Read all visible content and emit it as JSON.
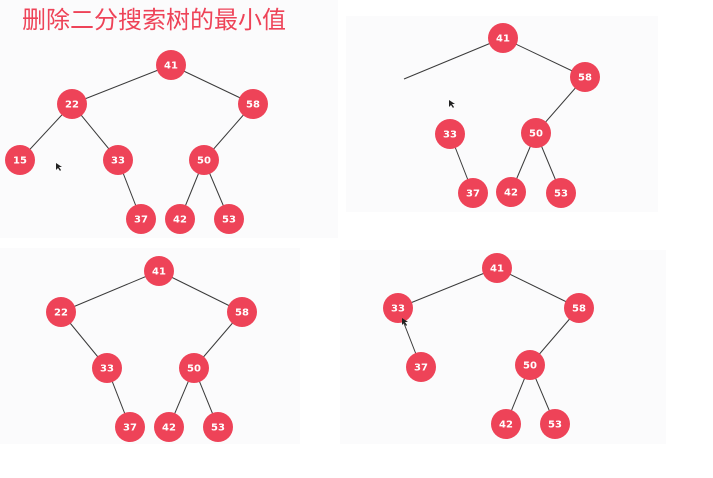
{
  "title": "删除二分搜索树的最小值",
  "colors": {
    "node_fill": "#ee4358",
    "node_text": "#ffffff",
    "edge": "#3a3a3a",
    "title": "#ee4358",
    "panel_bg": "#fbfbfc"
  },
  "icons": [
    "mouse-cursor-icon"
  ],
  "panels": [
    {
      "name": "tree-panel-1",
      "nodes": [
        {
          "id": "n41",
          "label": "41"
        },
        {
          "id": "n22",
          "label": "22"
        },
        {
          "id": "n58",
          "label": "58"
        },
        {
          "id": "n15",
          "label": "15"
        },
        {
          "id": "n33",
          "label": "33"
        },
        {
          "id": "n50",
          "label": "50"
        },
        {
          "id": "n37",
          "label": "37"
        },
        {
          "id": "n42",
          "label": "42"
        },
        {
          "id": "n53",
          "label": "53"
        }
      ],
      "edges": [
        [
          "n41",
          "n22"
        ],
        [
          "n41",
          "n58"
        ],
        [
          "n22",
          "n15"
        ],
        [
          "n22",
          "n33"
        ],
        [
          "n58",
          "n50"
        ],
        [
          "n33",
          "n37"
        ],
        [
          "n50",
          "n42"
        ],
        [
          "n50",
          "n53"
        ]
      ]
    },
    {
      "name": "tree-panel-2",
      "nodes": [
        {
          "id": "n41",
          "label": "41"
        },
        {
          "id": "n58",
          "label": "58"
        },
        {
          "id": "n33",
          "label": "33"
        },
        {
          "id": "n50",
          "label": "50"
        },
        {
          "id": "n37",
          "label": "37"
        },
        {
          "id": "n42",
          "label": "42"
        },
        {
          "id": "n53",
          "label": "53"
        }
      ],
      "edges": [
        [
          "n41",
          "dangling"
        ],
        [
          "n41",
          "n58"
        ],
        [
          "n58",
          "n50"
        ],
        [
          "n33",
          "n37"
        ],
        [
          "n50",
          "n42"
        ],
        [
          "n50",
          "n53"
        ]
      ]
    },
    {
      "name": "tree-panel-3",
      "nodes": [
        {
          "id": "n41",
          "label": "41"
        },
        {
          "id": "n22",
          "label": "22"
        },
        {
          "id": "n58",
          "label": "58"
        },
        {
          "id": "n33",
          "label": "33"
        },
        {
          "id": "n50",
          "label": "50"
        },
        {
          "id": "n37",
          "label": "37"
        },
        {
          "id": "n42",
          "label": "42"
        },
        {
          "id": "n53",
          "label": "53"
        }
      ],
      "edges": [
        [
          "n41",
          "n22"
        ],
        [
          "n41",
          "n58"
        ],
        [
          "n22",
          "n33"
        ],
        [
          "n58",
          "n50"
        ],
        [
          "n33",
          "n37"
        ],
        [
          "n50",
          "n42"
        ],
        [
          "n50",
          "n53"
        ]
      ]
    },
    {
      "name": "tree-panel-4",
      "nodes": [
        {
          "id": "n41",
          "label": "41"
        },
        {
          "id": "n33",
          "label": "33"
        },
        {
          "id": "n58",
          "label": "58"
        },
        {
          "id": "n37",
          "label": "37"
        },
        {
          "id": "n50",
          "label": "50"
        },
        {
          "id": "n42",
          "label": "42"
        },
        {
          "id": "n53",
          "label": "53"
        }
      ],
      "edges": [
        [
          "n41",
          "n33"
        ],
        [
          "n41",
          "n58"
        ],
        [
          "n33",
          "n37"
        ],
        [
          "n58",
          "n50"
        ],
        [
          "n50",
          "n42"
        ],
        [
          "n50",
          "n53"
        ]
      ]
    }
  ]
}
